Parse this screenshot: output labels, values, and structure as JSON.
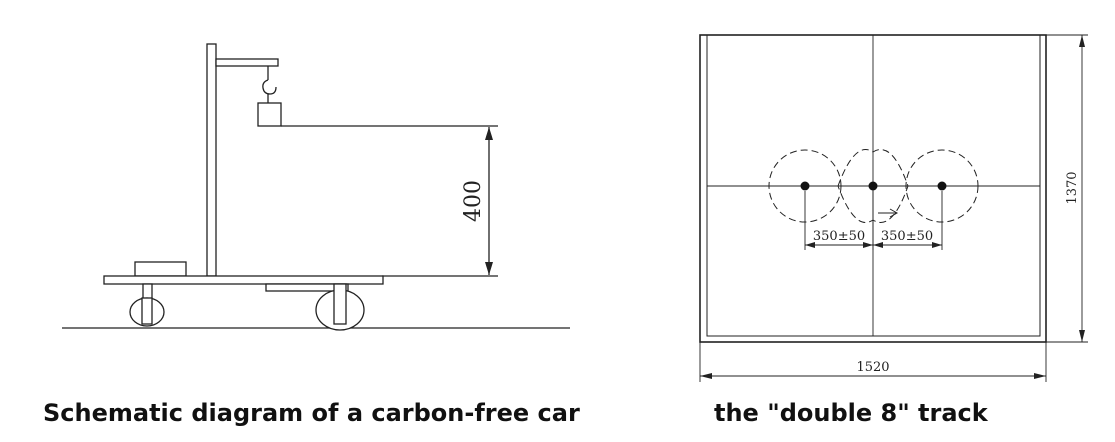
{
  "left_figure": {
    "dimension_label": "400",
    "caption": "Schematic diagram of a carbon-free car"
  },
  "right_figure": {
    "width_label": "1520",
    "height_label": "1370",
    "spacing_label_left": "350±50",
    "spacing_label_right": "350±50",
    "caption": "the \"double 8\" track"
  }
}
